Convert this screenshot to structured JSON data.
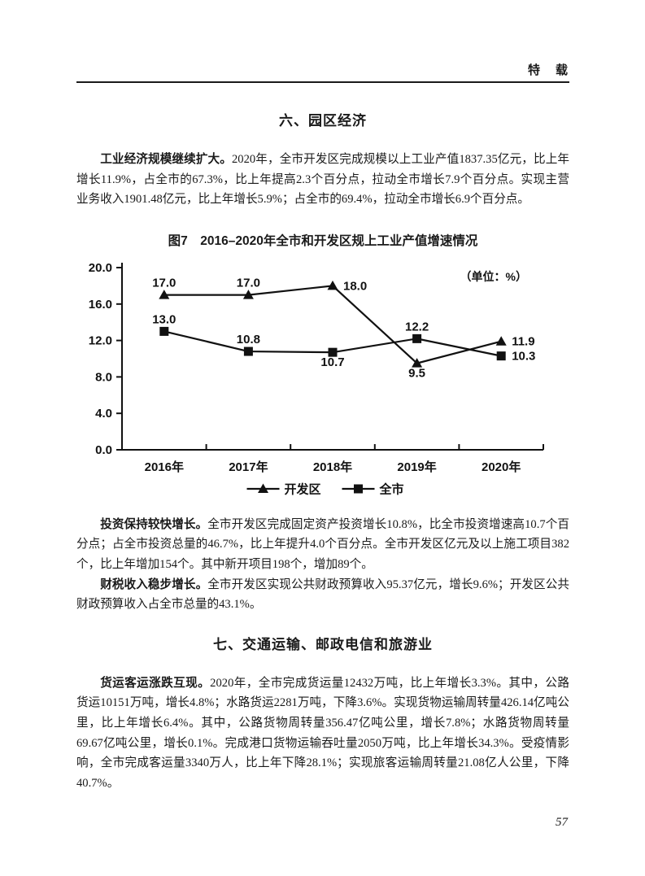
{
  "header": {
    "running_title": "特　载"
  },
  "sections": {
    "parks": {
      "heading": "六、园区经济",
      "paragraphs": [
        {
          "lead": "工业经济规模继续扩大。",
          "text": "2020年，全市开发区完成规模以上工业产值1837.35亿元，比上年增长11.9%，占全市的67.3%，比上年提高2.3个百分点，拉动全市增长7.9个百分点。实现主营业务收入1901.48亿元，比上年增长5.9%；占全市的69.4%，拉动全市增长6.9个百分点。"
        },
        {
          "lead": "投资保持较快增长。",
          "text": "全市开发区完成固定资产投资增长10.8%，比全市投资增速高10.7个百分点；占全市投资总量的46.7%，比上年提升4.0个百分点。全市开发区亿元及以上施工项目382个，比上年增加154个。其中新开项目198个，增加89个。"
        },
        {
          "lead": "财税收入稳步增长。",
          "text": "全市开发区实现公共财政预算收入95.37亿元，增长9.6%；开发区公共财政预算收入占全市总量的43.1%。"
        }
      ],
      "figure": {
        "title": "图7　2016–2020年全市和开发区规上工业产值增速情况"
      }
    },
    "transport": {
      "heading": "七、交通运输、邮政电信和旅游业",
      "paragraphs": [
        {
          "lead": "货运客运涨跌互现。",
          "text": "2020年，全市完成货运量12432万吨，比上年增长3.3%。其中，公路货运10151万吨，增长4.8%；水路货运2281万吨，下降3.6%。实现货物运输周转量426.14亿吨公里，比上年增长6.4%。其中，公路货物周转量356.47亿吨公里，增长7.8%；水路货物周转量69.67亿吨公里，增长0.1%。完成港口货物运输吞吐量2050万吨，比上年增长34.3%。受疫情影响，全市完成客运量3340万人，比上年下降28.1%；实现旅客运输周转量21.08亿人公里，下降40.7%。"
        }
      ]
    }
  },
  "page_number": "57",
  "chart_data": {
    "type": "line",
    "title": "图7　2016–2020年全市和开发区规上工业产值增速情况",
    "unit_label": "（单位：%）",
    "categories": [
      "2016年",
      "2017年",
      "2018年",
      "2019年",
      "2020年"
    ],
    "series": [
      {
        "name": "开发区",
        "marker": "triangle",
        "values": [
          17.0,
          17.0,
          18.0,
          9.5,
          11.9
        ],
        "labels": [
          "17.0",
          "17.0",
          "18.0",
          "9.5",
          "11.9"
        ],
        "label_pos": [
          "above",
          "above",
          "right",
          "below",
          "right"
        ]
      },
      {
        "name": "全市",
        "marker": "square",
        "values": [
          13.0,
          10.8,
          10.7,
          12.2,
          10.3
        ],
        "labels": [
          "13.0",
          "10.8",
          "10.7",
          "12.2",
          "10.3"
        ],
        "label_pos": [
          "above",
          "above",
          "below",
          "above",
          "right"
        ]
      }
    ],
    "ylim": [
      0,
      20
    ],
    "yticks": [
      0.0,
      4.0,
      8.0,
      12.0,
      16.0,
      20.0
    ],
    "ytick_labels": [
      "0.0",
      "4.0",
      "8.0",
      "12.0",
      "16.0",
      "20.0"
    ],
    "grid": false,
    "legend_position": "bottom",
    "line_color": "#111111"
  }
}
